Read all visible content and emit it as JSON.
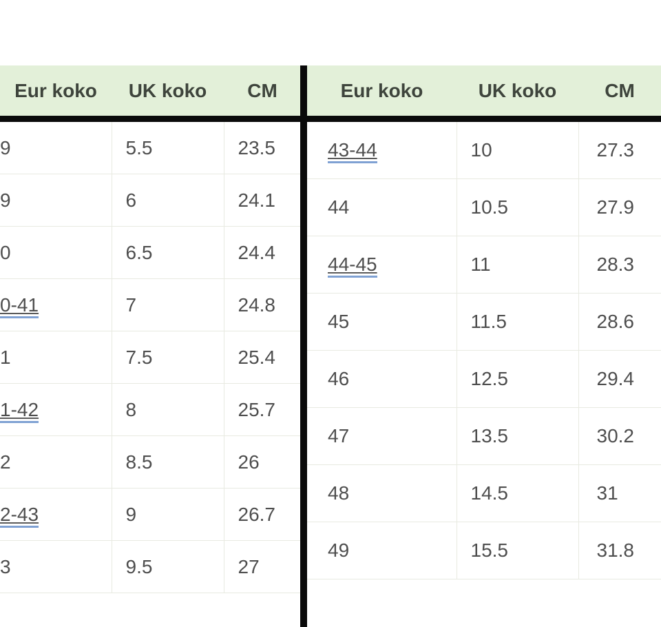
{
  "colors": {
    "header_bg": "#e3f0d9",
    "header_text": "#3e443c",
    "cell_text": "#4e4e4e",
    "grid_line": "#e8eae1",
    "black_bar": "#0a0a0a",
    "link_underline_blue": "#7fa1d3",
    "page_bg": "#ffffff"
  },
  "left_table": {
    "headers": {
      "eur": "Eur koko",
      "uk": "UK koko",
      "cm": "CM"
    },
    "rows": [
      {
        "eur": "9",
        "link": false,
        "uk": "5.5",
        "cm": "23.5"
      },
      {
        "eur": "9",
        "link": false,
        "uk": "6",
        "cm": "24.1"
      },
      {
        "eur": "0",
        "link": false,
        "uk": "6.5",
        "cm": "24.4"
      },
      {
        "eur": "0-41",
        "link": true,
        "uk": "7",
        "cm": "24.8"
      },
      {
        "eur": "1",
        "link": false,
        "uk": "7.5",
        "cm": "25.4"
      },
      {
        "eur": "1-42",
        "link": true,
        "uk": "8",
        "cm": "25.7"
      },
      {
        "eur": "2",
        "link": false,
        "uk": "8.5",
        "cm": "26"
      },
      {
        "eur": "2-43",
        "link": true,
        "uk": "9",
        "cm": "26.7"
      },
      {
        "eur": "3",
        "link": false,
        "uk": "9.5",
        "cm": "27"
      }
    ]
  },
  "right_table": {
    "headers": {
      "eur": "Eur koko",
      "uk": "UK koko",
      "cm": "CM"
    },
    "rows": [
      {
        "eur": "43-44",
        "link": true,
        "uk": "10",
        "cm": "27.3"
      },
      {
        "eur": "44",
        "link": false,
        "uk": "10.5",
        "cm": "27.9"
      },
      {
        "eur": "44-45",
        "link": true,
        "uk": "11",
        "cm": "28.3"
      },
      {
        "eur": "45",
        "link": false,
        "uk": "11.5",
        "cm": "28.6"
      },
      {
        "eur": "46",
        "link": false,
        "uk": "12.5",
        "cm": "29.4"
      },
      {
        "eur": "47",
        "link": false,
        "uk": "13.5",
        "cm": "30.2"
      },
      {
        "eur": "48",
        "link": false,
        "uk": "14.5",
        "cm": "31"
      },
      {
        "eur": "49",
        "link": false,
        "uk": "15.5",
        "cm": "31.8"
      }
    ]
  }
}
